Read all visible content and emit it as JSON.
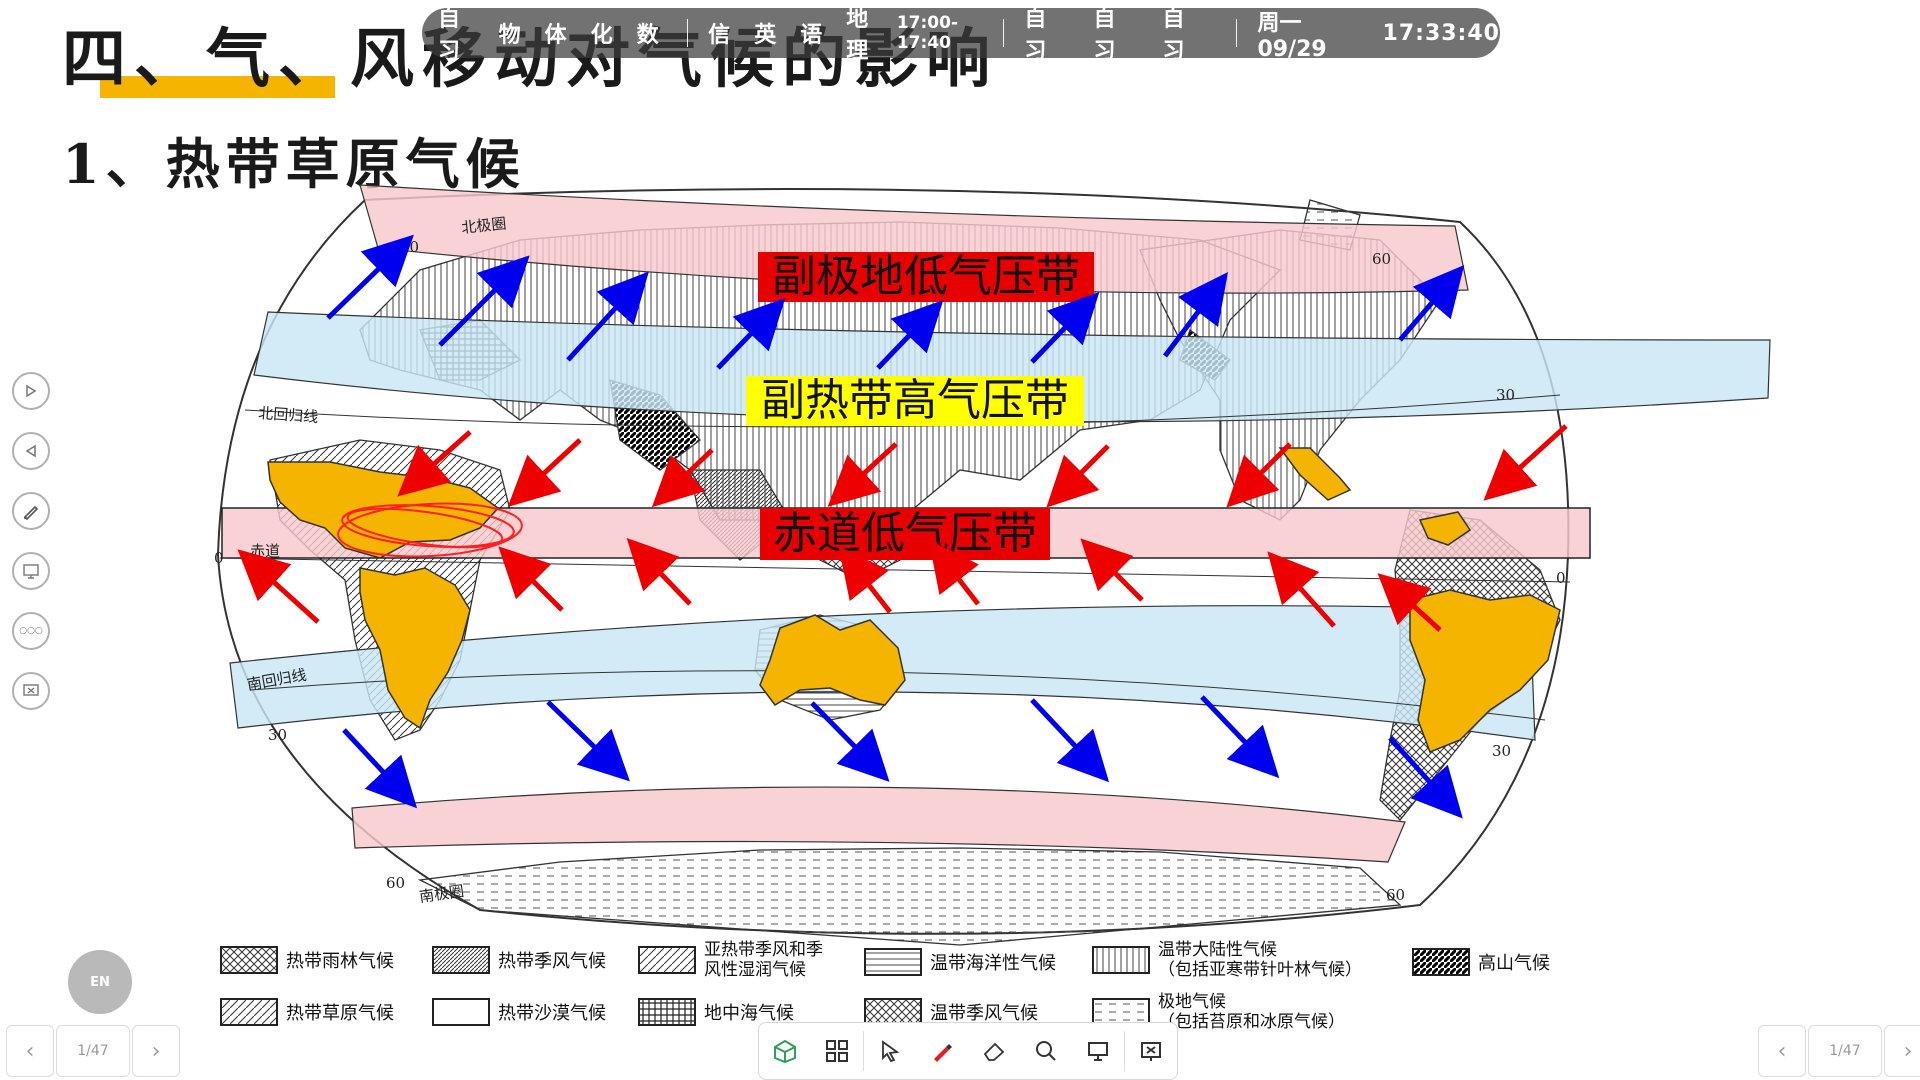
{
  "slide": {
    "title": "四、气、风移动对气候的影响",
    "subtitle": "1、热带草原气候"
  },
  "topbar": {
    "classes": [
      "自习",
      "物",
      "体",
      "化",
      "数",
      "信",
      "英",
      "语",
      "地理"
    ],
    "current_time": "17:00-17:40",
    "next": [
      "自习",
      "自习",
      "自习"
    ],
    "date": "周一 09/29",
    "clock": "17:33:40"
  },
  "map": {
    "labels": {
      "subpolar_low": "副极地低气压带",
      "subtropical_high": "副热带高气压带",
      "equatorial_low": "赤道低气压带",
      "arctic_circle": "北极圈",
      "tropic_cancer": "北回归线",
      "equator": "赤道",
      "tropic_capricorn": "南回归线",
      "antarctic_circle": "南极圈",
      "lat_60": "60",
      "lat_30": "30",
      "lat_0": "0"
    },
    "colors": {
      "low_band": "#f8c8cc",
      "high_band": "#c8e6f5",
      "label_red_bg": "#e60000",
      "label_yellow_bg": "#ffff00",
      "savanna_fill": "#f5b400",
      "arrow_red": "#ee0000",
      "arrow_blue": "#0000ee"
    }
  },
  "legend": {
    "items": [
      {
        "label": "热带雨林气候",
        "pattern": "cross-hatch"
      },
      {
        "label": "热带季风气候",
        "pattern": "dense-diagonal"
      },
      {
        "label": "亚热带季风和季",
        "label2": "风性湿润气候",
        "pattern": "diagonal"
      },
      {
        "label": "温带海洋性气候",
        "pattern": "horizontal"
      },
      {
        "label": "温带大陆性气候",
        "label2": "（包括亚寒带针叶林气候）",
        "pattern": "vertical"
      },
      {
        "label": "高山气候",
        "pattern": "black-diagonal"
      },
      {
        "label": "热带草原气候",
        "pattern": "light-diagonal"
      },
      {
        "label": "热带沙漠气候",
        "pattern": "blank"
      },
      {
        "label": "地中海气候",
        "pattern": "grid"
      },
      {
        "label": "温带季风气候",
        "pattern": "diamond"
      },
      {
        "label": "极地气候",
        "label2": "（包括苔原和冰原气候）",
        "pattern": "dashes"
      }
    ]
  },
  "sidebar": {
    "buttons": [
      {
        "name": "next-page",
        "icon": "play-right-icon"
      },
      {
        "name": "prev-page",
        "icon": "play-left-icon"
      },
      {
        "name": "pen",
        "icon": "pen-icon"
      },
      {
        "name": "screen",
        "icon": "screen-icon"
      },
      {
        "name": "more",
        "icon": "more-icon",
        "glyph": "○○○"
      },
      {
        "name": "exit",
        "icon": "exit-icon"
      }
    ]
  },
  "input_method": "EN",
  "pager_left": {
    "page": "1/47"
  },
  "pager_right": {
    "page": "1/47"
  },
  "toolbar": {
    "tools": [
      "box-icon",
      "grid-icon",
      "pointer-icon",
      "pen-icon",
      "eraser-icon",
      "magnifier-icon",
      "screen-icon",
      "exit-icon"
    ]
  }
}
